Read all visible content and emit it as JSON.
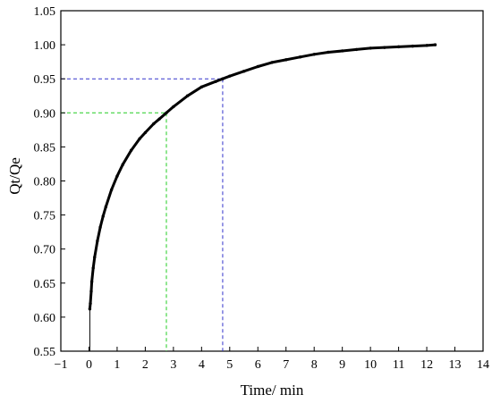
{
  "chart_data": {
    "type": "line",
    "title": "",
    "xlabel": "Time/ min",
    "ylabel": "Qt/Qe",
    "xlim": [
      -1,
      14
    ],
    "ylim": [
      0.55,
      1.05
    ],
    "x_ticks": [
      -1,
      0,
      1,
      2,
      3,
      4,
      5,
      6,
      7,
      8,
      9,
      10,
      11,
      12,
      13,
      14
    ],
    "x_tick_labels": [
      "−1",
      "0",
      "1",
      "2",
      "3",
      "4",
      "5",
      "6",
      "7",
      "8",
      "9",
      "10",
      "11",
      "12",
      "13",
      "14"
    ],
    "y_ticks": [
      0.55,
      0.6,
      0.65,
      0.7,
      0.75,
      0.8,
      0.85,
      0.9,
      0.95,
      1.0,
      1.05
    ],
    "y_tick_labels": [
      "0.55",
      "0.60",
      "0.65",
      "0.70",
      "0.75",
      "0.80",
      "0.85",
      "0.90",
      "0.95",
      "1.00",
      "1.05"
    ],
    "grid": false,
    "series": [
      {
        "color": "#000000",
        "marker": "dot",
        "x": [
          0.03,
          0.05,
          0.08,
          0.1,
          0.15,
          0.2,
          0.3,
          0.4,
          0.5,
          0.6,
          0.8,
          1.0,
          1.2,
          1.5,
          1.8,
          2.0,
          2.3,
          2.5,
          2.75,
          3.0,
          3.5,
          4.0,
          4.5,
          4.75,
          5.0,
          5.5,
          6.0,
          6.5,
          7.0,
          7.5,
          8.0,
          8.5,
          9.0,
          9.5,
          10.0,
          10.5,
          11.0,
          11.5,
          12.0,
          12.3
        ],
        "y": [
          0.612,
          0.62,
          0.638,
          0.652,
          0.672,
          0.688,
          0.712,
          0.732,
          0.748,
          0.762,
          0.787,
          0.807,
          0.824,
          0.845,
          0.862,
          0.871,
          0.884,
          0.891,
          0.9,
          0.909,
          0.925,
          0.938,
          0.946,
          0.95,
          0.954,
          0.961,
          0.968,
          0.974,
          0.978,
          0.982,
          0.986,
          0.989,
          0.991,
          0.993,
          0.995,
          0.996,
          0.997,
          0.998,
          0.999,
          1.0
        ]
      }
    ],
    "reference_lines": [
      {
        "color": "#22cc22",
        "x": 2.75,
        "y": 0.9
      },
      {
        "color": "#3333cc",
        "x": 4.75,
        "y": 0.95
      }
    ]
  }
}
